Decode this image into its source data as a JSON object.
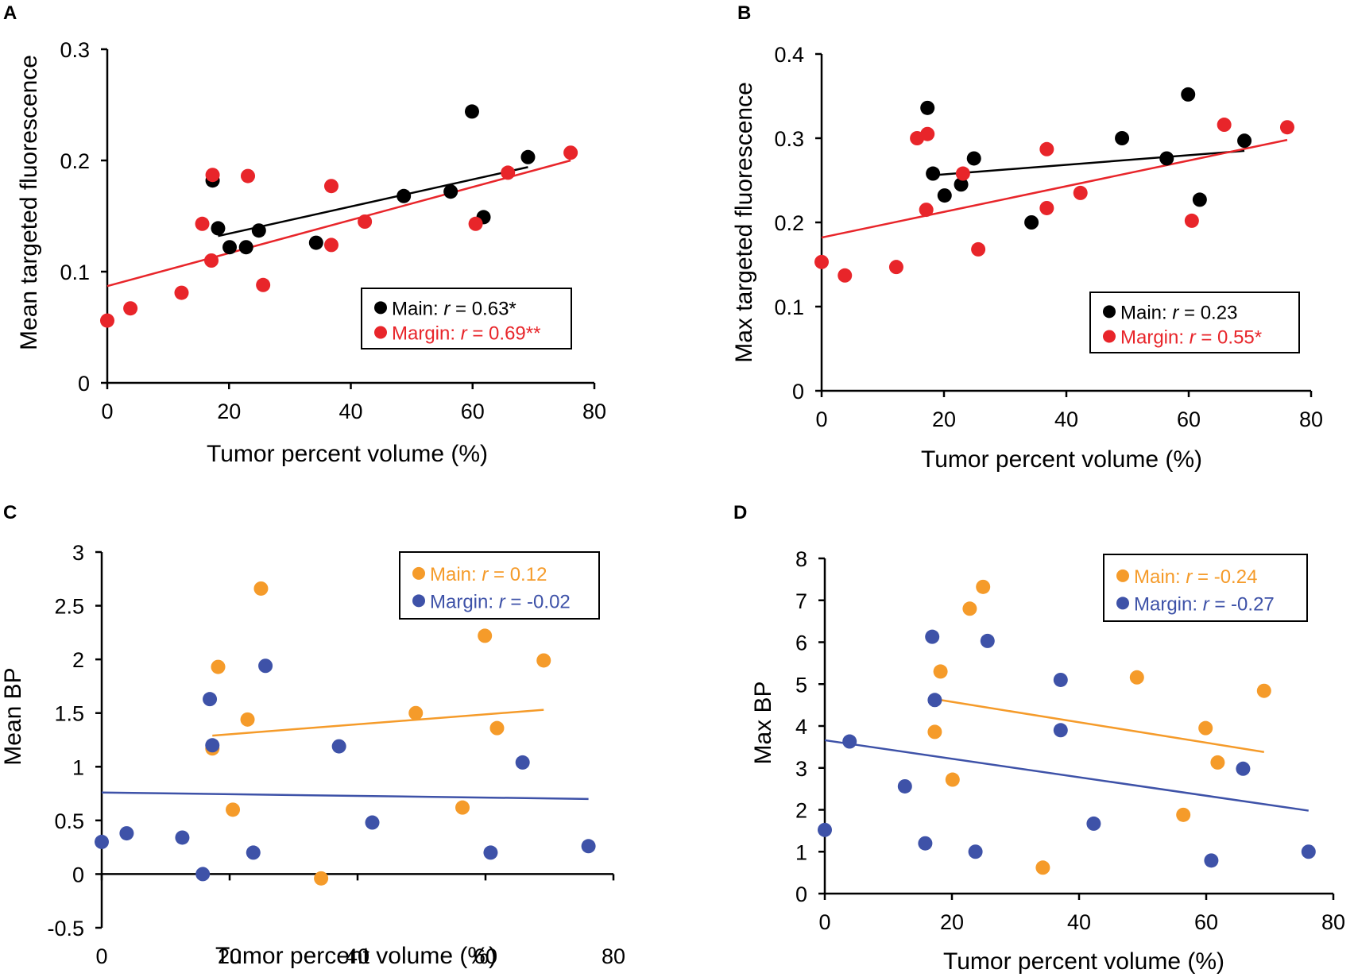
{
  "colors": {
    "main_ab": "#000000",
    "margin_ab": "#e8252a",
    "main_cd": "#f59b2a",
    "margin_cd": "#3e52a8"
  },
  "chart_data": [
    {
      "type": "scatter",
      "panel": "A",
      "xlabel": "Tumor percent volume (%)",
      "ylabel": "Mean targeted fluorescence",
      "xlim": [
        0,
        80
      ],
      "ylim": [
        0,
        0.3
      ],
      "xticks": [
        "0",
        "20",
        "40",
        "60",
        "80"
      ],
      "yticks": [
        "0",
        "0.1",
        "0.2",
        "0.3"
      ],
      "legend_position": "bottom-right",
      "series": [
        {
          "name": "Main",
          "legend_prefix": "Main: ",
          "legend_suffix": " = 0.63*",
          "color": "#000000",
          "points": [
            [
              17.3,
              0.182
            ],
            [
              18.2,
              0.139
            ],
            [
              20.1,
              0.122
            ],
            [
              22.8,
              0.122
            ],
            [
              24.9,
              0.137
            ],
            [
              34.3,
              0.126
            ],
            [
              48.7,
              0.168
            ],
            [
              56.4,
              0.172
            ],
            [
              59.9,
              0.244
            ],
            [
              61.8,
              0.149
            ],
            [
              69.1,
              0.203
            ]
          ],
          "fit": [
            [
              18.2,
              0.132
            ],
            [
              69.1,
              0.194
            ]
          ]
        },
        {
          "name": "Margin",
          "legend_prefix": "Margin: ",
          "legend_suffix": " = 0.69**",
          "color": "#e8252a",
          "points": [
            [
              0,
              0.056
            ],
            [
              3.8,
              0.067
            ],
            [
              12.2,
              0.081
            ],
            [
              15.6,
              0.143
            ],
            [
              17.1,
              0.11
            ],
            [
              17.3,
              0.187
            ],
            [
              23.1,
              0.186
            ],
            [
              25.6,
              0.088
            ],
            [
              36.8,
              0.177
            ],
            [
              36.8,
              0.124
            ],
            [
              42.3,
              0.145
            ],
            [
              60.5,
              0.143
            ],
            [
              65.8,
              0.189
            ],
            [
              76.1,
              0.207
            ]
          ],
          "fit": [
            [
              0,
              0.087
            ],
            [
              76.1,
              0.2
            ]
          ]
        }
      ]
    },
    {
      "type": "scatter",
      "panel": "B",
      "xlabel": "Tumor percent volume (%)",
      "ylabel": "Max targeted fluorescence",
      "xlim": [
        0,
        80
      ],
      "ylim": [
        0,
        0.4
      ],
      "xticks": [
        "0",
        "20",
        "40",
        "60",
        "80"
      ],
      "yticks": [
        "0",
        "0.1",
        "0.2",
        "0.3",
        "0.4"
      ],
      "legend_position": "bottom-right",
      "series": [
        {
          "name": "Main",
          "legend_prefix": "Main: ",
          "legend_suffix": " = 0.23",
          "color": "#000000",
          "points": [
            [
              17.3,
              0.336
            ],
            [
              18.2,
              0.258
            ],
            [
              20.1,
              0.232
            ],
            [
              22.8,
              0.245
            ],
            [
              24.9,
              0.276
            ],
            [
              34.3,
              0.2
            ],
            [
              49.1,
              0.3
            ],
            [
              56.4,
              0.276
            ],
            [
              59.9,
              0.352
            ],
            [
              61.8,
              0.227
            ],
            [
              69.1,
              0.297
            ]
          ],
          "fit": [
            [
              18.2,
              0.256
            ],
            [
              69.1,
              0.285
            ]
          ]
        },
        {
          "name": "Margin",
          "legend_prefix": "Margin: ",
          "legend_suffix": " = 0.55*",
          "color": "#e8252a",
          "points": [
            [
              0,
              0.153
            ],
            [
              3.8,
              0.137
            ],
            [
              12.2,
              0.147
            ],
            [
              15.6,
              0.3
            ],
            [
              17.1,
              0.215
            ],
            [
              17.3,
              0.305
            ],
            [
              23.1,
              0.258
            ],
            [
              25.6,
              0.168
            ],
            [
              36.8,
              0.287
            ],
            [
              36.8,
              0.217
            ],
            [
              42.3,
              0.235
            ],
            [
              60.5,
              0.202
            ],
            [
              65.8,
              0.316
            ],
            [
              76.1,
              0.313
            ]
          ],
          "fit": [
            [
              0,
              0.182
            ],
            [
              76.1,
              0.298
            ]
          ]
        }
      ]
    },
    {
      "type": "scatter",
      "panel": "C",
      "xlabel": "Tumor percent volume (%)",
      "ylabel": "Mean BP",
      "xlim": [
        0,
        80
      ],
      "ylim": [
        -0.5,
        3
      ],
      "xticks": [
        "0",
        "20",
        "40",
        "60",
        "80"
      ],
      "yticks": [
        "-0.5",
        "0",
        "0.5",
        "1",
        "1.5",
        "2",
        "2.5",
        "3"
      ],
      "legend_position": "top-right",
      "series": [
        {
          "name": "Main",
          "legend_prefix": "Main: ",
          "legend_suffix": " = 0.12",
          "color": "#f59b2a",
          "points": [
            [
              17.3,
              1.17
            ],
            [
              18.2,
              1.93
            ],
            [
              20.5,
              0.6
            ],
            [
              22.8,
              1.44
            ],
            [
              24.9,
              2.66
            ],
            [
              34.3,
              -0.04
            ],
            [
              49.1,
              1.5
            ],
            [
              56.4,
              0.62
            ],
            [
              59.9,
              2.22
            ],
            [
              61.8,
              1.36
            ],
            [
              69.1,
              1.99
            ]
          ],
          "fit": [
            [
              17.3,
              1.29
            ],
            [
              69.1,
              1.53
            ]
          ]
        },
        {
          "name": "Margin",
          "legend_prefix": "Margin: ",
          "legend_suffix": " = -0.02",
          "color": "#3e52a8",
          "points": [
            [
              0,
              0.3
            ],
            [
              3.9,
              0.38
            ],
            [
              12.6,
              0.34
            ],
            [
              15.8,
              0.0
            ],
            [
              16.9,
              1.63
            ],
            [
              17.3,
              1.2
            ],
            [
              23.7,
              0.2
            ],
            [
              25.6,
              1.94
            ],
            [
              37.1,
              1.19
            ],
            [
              42.3,
              0.48
            ],
            [
              60.8,
              0.2
            ],
            [
              65.8,
              1.04
            ],
            [
              76.1,
              0.26
            ]
          ],
          "fit": [
            [
              0,
              0.76
            ],
            [
              76.1,
              0.7
            ]
          ]
        }
      ]
    },
    {
      "type": "scatter",
      "panel": "D",
      "xlabel": "Tumor percent volume (%)",
      "ylabel": "Max BP",
      "xlim": [
        0,
        80
      ],
      "ylim": [
        0,
        8
      ],
      "xticks": [
        "0",
        "20",
        "40",
        "60",
        "80"
      ],
      "yticks": [
        "0",
        "1",
        "2",
        "3",
        "4",
        "5",
        "6",
        "7",
        "8"
      ],
      "legend_position": "top-right",
      "series": [
        {
          "name": "Main",
          "legend_prefix": "Main: ",
          "legend_suffix": " = -0.24",
          "color": "#f59b2a",
          "points": [
            [
              17.3,
              3.86
            ],
            [
              18.2,
              5.3
            ],
            [
              20.1,
              2.72
            ],
            [
              22.8,
              6.8
            ],
            [
              24.9,
              7.32
            ],
            [
              34.3,
              0.62
            ],
            [
              49.1,
              5.16
            ],
            [
              56.4,
              1.88
            ],
            [
              59.9,
              3.95
            ],
            [
              61.8,
              3.13
            ],
            [
              69.1,
              4.84
            ]
          ],
          "fit": [
            [
              18.2,
              4.62
            ],
            [
              69.1,
              3.38
            ]
          ]
        },
        {
          "name": "Margin",
          "legend_prefix": "Margin: ",
          "legend_suffix": " = -0.27",
          "color": "#3e52a8",
          "points": [
            [
              0,
              1.52
            ],
            [
              3.9,
              3.63
            ],
            [
              12.6,
              2.56
            ],
            [
              15.8,
              1.2
            ],
            [
              16.9,
              6.13
            ],
            [
              17.3,
              4.62
            ],
            [
              23.7,
              1.0
            ],
            [
              25.6,
              6.03
            ],
            [
              37.1,
              5.1
            ],
            [
              37.1,
              3.9
            ],
            [
              42.3,
              1.67
            ],
            [
              60.8,
              0.79
            ],
            [
              65.8,
              2.98
            ],
            [
              76.1,
              1.0
            ]
          ],
          "fit": [
            [
              0,
              3.66
            ],
            [
              76.1,
              1.98
            ]
          ]
        }
      ]
    }
  ]
}
